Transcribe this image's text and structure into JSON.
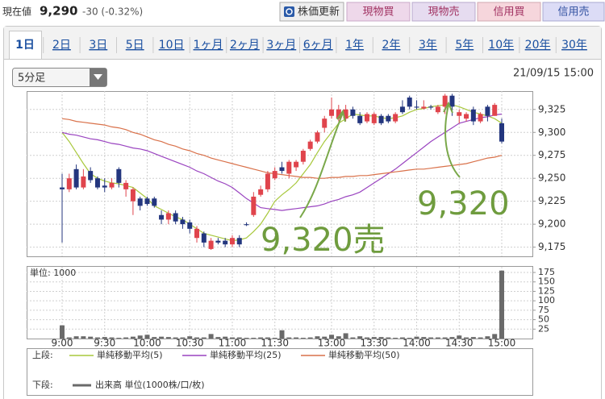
{
  "header": {
    "label": "現在値",
    "price": "9,290",
    "change": "-30 (-0.32%)"
  },
  "buttons": [
    "株価更新",
    "現物買",
    "現物売",
    "信用買",
    "信用売"
  ],
  "tabs": [
    "1日",
    "2日",
    "3日",
    "5日",
    "10日",
    "1ヶ月",
    "2ヶ月",
    "3ヶ月",
    "6ヶ月",
    "1年",
    "2年",
    "3年",
    "5年",
    "10年",
    "20年",
    "30年"
  ],
  "interval": "5分足",
  "timestamp": "21/09/15 15:00",
  "annotations": [
    "9,320売",
    "9,320"
  ],
  "legend": {
    "upper": "上段:",
    "lower": "下段:"
  },
  "chart_data": [
    {
      "type": "candlestick",
      "categories": [
        "9:00",
        null,
        null,
        null,
        null,
        null,
        "9:30",
        null,
        null,
        null,
        null,
        null,
        "10:00",
        null,
        null,
        null,
        null,
        null,
        "10:30",
        null,
        null,
        null,
        null,
        null,
        "11:00",
        null,
        null,
        null,
        null,
        null,
        "11:30",
        null,
        null,
        null,
        null,
        null,
        null,
        null,
        "13:00",
        null,
        null,
        null,
        null,
        null,
        "13:30",
        null,
        null,
        null,
        null,
        null,
        "14:00",
        null,
        null,
        null,
        null,
        null,
        "14:30",
        null,
        null,
        null,
        null,
        null,
        "15:00"
      ],
      "open": [
        9240,
        9238,
        9260,
        9240,
        9258,
        9250,
        9242,
        9240,
        9260,
        9238,
        9225,
        9228,
        9228,
        9228,
        9210,
        9205,
        9212,
        9205,
        9202,
        9185,
        9190,
        9173,
        9182,
        9182,
        9178,
        9185,
        9200,
        9210,
        9232,
        9238,
        9250,
        9262,
        9255,
        9262,
        9268,
        9282,
        9290,
        9305,
        9318,
        9315,
        9315,
        9325,
        9318,
        9312,
        9310,
        9318,
        9318,
        9312,
        9328,
        9338,
        9328,
        9326,
        9328,
        9322,
        9328,
        9340,
        9318,
        9315,
        9325,
        9312,
        9328,
        9318,
        9310
      ],
      "high": [
        9255,
        9255,
        9265,
        9260,
        9262,
        9252,
        9250,
        9250,
        9262,
        9248,
        9240,
        9230,
        9230,
        9230,
        9215,
        9215,
        9215,
        9208,
        9205,
        9198,
        9192,
        9185,
        9185,
        9185,
        9188,
        9188,
        9202,
        9235,
        9242,
        9258,
        9262,
        9268,
        9270,
        9270,
        9282,
        9292,
        9302,
        9318,
        9338,
        9330,
        9330,
        9328,
        9322,
        9322,
        9322,
        9320,
        9320,
        9322,
        9335,
        9340,
        9335,
        9335,
        9330,
        9330,
        9342,
        9342,
        9325,
        9322,
        9328,
        9322,
        9330,
        9332,
        9315
      ],
      "low": [
        9180,
        9235,
        9238,
        9238,
        9245,
        9238,
        9235,
        9238,
        9240,
        9230,
        9210,
        9215,
        9220,
        9218,
        9200,
        9200,
        9200,
        9195,
        9190,
        9180,
        9175,
        9172,
        9178,
        9175,
        9175,
        9175,
        9198,
        9208,
        9230,
        9235,
        9248,
        9255,
        9250,
        9258,
        9265,
        9280,
        9288,
        9300,
        9315,
        9312,
        9312,
        9315,
        9308,
        9310,
        9308,
        9308,
        9310,
        9310,
        9320,
        9325,
        9325,
        9325,
        9325,
        9320,
        9320,
        9318,
        9310,
        9312,
        9308,
        9310,
        9312,
        9318,
        9288
      ],
      "close": [
        9238,
        9250,
        9240,
        9252,
        9248,
        9240,
        9240,
        9245,
        9245,
        9245,
        9238,
        9220,
        9222,
        9220,
        9205,
        9212,
        9203,
        9200,
        9195,
        9195,
        9180,
        9182,
        9180,
        9178,
        9185,
        9178,
        9199,
        9230,
        9238,
        9255,
        9258,
        9258,
        9268,
        9268,
        9280,
        9290,
        9300,
        9315,
        9325,
        9325,
        9325,
        9318,
        9310,
        9320,
        9320,
        9310,
        9312,
        9320,
        9322,
        9328,
        9327,
        9328,
        9327,
        9328,
        9340,
        9328,
        9322,
        9320,
        9312,
        9320,
        9318,
        9330,
        9290
      ],
      "up_color": "#e0444c",
      "down_color": "#23367e",
      "series": [
        {
          "name": "単純移動平均(5)",
          "color": "#a8c83c",
          "values": [
            9300,
            9290,
            9278,
            9266,
            9255,
            9250,
            9247,
            9245,
            9244,
            9242,
            9240,
            9234,
            9228,
            9220,
            9216,
            9212,
            9208,
            9205,
            9200,
            9195,
            9190,
            9188,
            9186,
            9184,
            9182,
            9183,
            9185,
            9192,
            9200,
            9212,
            9225,
            9232,
            9238,
            9245,
            9255,
            9265,
            9278,
            9290,
            9300,
            9310,
            9315,
            9320,
            9319,
            9318,
            9318,
            9316,
            9315,
            9316,
            9318,
            9322,
            9325,
            9326,
            9328,
            9329,
            9330,
            9330,
            9328,
            9325,
            9322,
            9320,
            9318,
            9315,
            9310
          ]
        },
        {
          "name": "単純移動平均(25)",
          "color": "#9a44c0",
          "values": [
            9300,
            9298,
            9297,
            9295,
            9293,
            9292,
            9290,
            9288,
            9287,
            9285,
            9283,
            9282,
            9280,
            9277,
            9274,
            9271,
            9268,
            9265,
            9262,
            9258,
            9255,
            9251,
            9247,
            9244,
            9240,
            9234,
            9228,
            9223,
            9218,
            9217,
            9216,
            9215,
            9216,
            9217,
            9218,
            9219,
            9220,
            9222,
            9225,
            9227,
            9230,
            9232,
            9235,
            9240,
            9245,
            9250,
            9255,
            9260,
            9266,
            9272,
            9278,
            9284,
            9290,
            9295,
            9300,
            9305,
            9310,
            9312,
            9314,
            9316,
            9317,
            9319,
            9320
          ]
        },
        {
          "name": "単純移動平均(50)",
          "color": "#d9714a",
          "values": [
            9315,
            9314,
            9312,
            9311,
            9310,
            9309,
            9308,
            9306,
            9305,
            9303,
            9300,
            9298,
            9295,
            9292,
            9290,
            9287,
            9285,
            9282,
            9280,
            9277,
            9275,
            9272,
            9270,
            9268,
            9266,
            9264,
            9262,
            9260,
            9258,
            9256,
            9255,
            9254,
            9253,
            9252,
            9251,
            9251,
            9250,
            9250,
            9251,
            9251,
            9252,
            9252,
            9253,
            9253,
            9254,
            9255,
            9256,
            9257,
            9258,
            9259,
            9260,
            9260,
            9261,
            9262,
            9263,
            9264,
            9265,
            9266,
            9268,
            9270,
            9272,
            9273,
            9275
          ]
        }
      ],
      "ylim": [
        9165,
        9345
      ],
      "yticks": [
        {
          "value": 9175,
          "label": "9,175"
        },
        {
          "value": 9200,
          "label": "9,200"
        },
        {
          "value": 9225,
          "label": "9,225"
        },
        {
          "value": 9250,
          "label": "9,250"
        },
        {
          "value": 9275,
          "label": "9,275"
        },
        {
          "value": 9300,
          "label": "9,300"
        },
        {
          "value": 9325,
          "label": "9,325"
        }
      ],
      "grid": true
    },
    {
      "type": "bar",
      "title": "単位: 1000",
      "series": [
        {
          "name": "出来高 単位(1000株/口/枚)",
          "color": "#6a6a6a",
          "values": [
            35,
            3,
            6,
            6,
            5,
            3,
            4,
            3,
            2,
            3,
            5,
            8,
            10,
            4,
            5,
            4,
            3,
            3,
            6,
            3,
            3,
            12,
            4,
            5,
            3,
            3,
            2,
            2,
            3,
            3,
            2,
            22,
            3,
            3,
            2,
            3,
            6,
            5,
            10,
            6,
            14,
            3,
            6,
            3,
            4,
            4,
            3,
            2,
            3,
            2,
            5,
            4,
            3,
            3,
            3,
            4,
            8,
            3,
            4,
            3,
            6,
            12,
            180
          ]
        }
      ],
      "ylim": [
        0,
        190
      ],
      "yticks": [
        25,
        50,
        75,
        100,
        125,
        150,
        175
      ],
      "grid": true
    }
  ]
}
